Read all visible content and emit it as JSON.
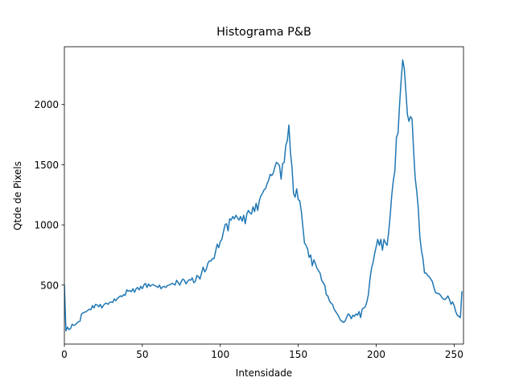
{
  "chart_data": {
    "type": "line",
    "title": "Histograma P&B",
    "xlabel": "Intensidade",
    "ylabel": "Qtde de Pixels",
    "x": [
      0,
      1,
      2,
      3,
      4,
      5,
      6,
      7,
      8,
      9,
      10,
      11,
      12,
      13,
      14,
      15,
      16,
      17,
      18,
      19,
      20,
      21,
      22,
      23,
      24,
      25,
      26,
      27,
      28,
      29,
      30,
      31,
      32,
      33,
      34,
      35,
      36,
      37,
      38,
      39,
      40,
      41,
      42,
      43,
      44,
      45,
      46,
      47,
      48,
      49,
      50,
      51,
      52,
      53,
      54,
      55,
      56,
      57,
      58,
      59,
      60,
      61,
      62,
      63,
      64,
      65,
      66,
      67,
      68,
      69,
      70,
      71,
      72,
      73,
      74,
      75,
      76,
      77,
      78,
      79,
      80,
      81,
      82,
      83,
      84,
      85,
      86,
      87,
      88,
      89,
      90,
      91,
      92,
      93,
      94,
      95,
      96,
      97,
      98,
      99,
      100,
      101,
      102,
      103,
      104,
      105,
      106,
      107,
      108,
      109,
      110,
      111,
      112,
      113,
      114,
      115,
      116,
      117,
      118,
      119,
      120,
      121,
      122,
      123,
      124,
      125,
      126,
      127,
      128,
      129,
      130,
      131,
      132,
      133,
      134,
      135,
      136,
      137,
      138,
      139,
      140,
      141,
      142,
      143,
      144,
      145,
      146,
      147,
      148,
      149,
      150,
      151,
      152,
      153,
      154,
      155,
      156,
      157,
      158,
      159,
      160,
      161,
      162,
      163,
      164,
      165,
      166,
      167,
      168,
      169,
      170,
      171,
      172,
      173,
      174,
      175,
      176,
      177,
      178,
      179,
      180,
      181,
      182,
      183,
      184,
      185,
      186,
      187,
      188,
      189,
      190,
      191,
      192,
      193,
      194,
      195,
      196,
      197,
      198,
      199,
      200,
      201,
      202,
      203,
      204,
      205,
      206,
      207,
      208,
      209,
      210,
      211,
      212,
      213,
      214,
      215,
      216,
      217,
      218,
      219,
      220,
      221,
      222,
      223,
      224,
      225,
      226,
      227,
      228,
      229,
      230,
      231,
      232,
      233,
      234,
      235,
      236,
      237,
      238,
      239,
      240,
      241,
      242,
      243,
      244,
      245,
      246,
      247,
      248,
      249,
      250,
      251,
      252,
      253,
      254,
      255
    ],
    "values": [
      500,
      120,
      150,
      130,
      140,
      175,
      165,
      170,
      185,
      195,
      200,
      260,
      270,
      275,
      280,
      290,
      300,
      295,
      330,
      310,
      340,
      335,
      320,
      340,
      310,
      330,
      345,
      350,
      340,
      355,
      360,
      355,
      385,
      370,
      390,
      400,
      410,
      405,
      420,
      415,
      460,
      450,
      455,
      445,
      470,
      440,
      470,
      480,
      460,
      490,
      470,
      500,
      515,
      480,
      510,
      490,
      500,
      505,
      495,
      490,
      480,
      500,
      470,
      485,
      490,
      480,
      495,
      500,
      505,
      515,
      510,
      500,
      540,
      520,
      500,
      530,
      550,
      540,
      510,
      530,
      545,
      540,
      560,
      520,
      530,
      580,
      570,
      550,
      600,
      650,
      610,
      630,
      680,
      700,
      700,
      720,
      720,
      780,
      840,
      810,
      860,
      880,
      940,
      1000,
      1010,
      950,
      1050,
      1040,
      1070,
      1050,
      1080,
      1060,
      1040,
      1070,
      1030,
      1080,
      1010,
      1090,
      1120,
      1100,
      1090,
      1150,
      1110,
      1180,
      1120,
      1200,
      1240,
      1260,
      1290,
      1300,
      1340,
      1370,
      1420,
      1410,
      1430,
      1480,
      1520,
      1510,
      1490,
      1380,
      1510,
      1520,
      1660,
      1700,
      1830,
      1600,
      1480,
      1260,
      1230,
      1300,
      1210,
      1200,
      1110,
      980,
      850,
      830,
      800,
      730,
      750,
      660,
      710,
      680,
      640,
      620,
      600,
      540,
      520,
      500,
      420,
      410,
      370,
      350,
      340,
      300,
      280,
      260,
      240,
      210,
      200,
      190,
      200,
      230,
      260,
      250,
      220,
      250,
      240,
      260,
      250,
      280,
      230,
      300,
      310,
      320,
      360,
      420,
      550,
      640,
      690,
      760,
      820,
      880,
      830,
      880,
      790,
      880,
      850,
      830,
      940,
      1080,
      1250,
      1370,
      1450,
      1730,
      1760,
      2000,
      2200,
      2370,
      2300,
      2120,
      1920,
      1860,
      1900,
      1880,
      1620,
      1390,
      1280,
      1140,
      900,
      790,
      720,
      600,
      600,
      580,
      570,
      550,
      530,
      480,
      440,
      430,
      430,
      420,
      400,
      385,
      380,
      390,
      410,
      380,
      340,
      360,
      330,
      280,
      250,
      240,
      230,
      450
    ],
    "color": "#1f77b4",
    "xlim": [
      0,
      256
    ],
    "ylim": [
      10,
      2480
    ],
    "xticks": [
      0,
      50,
      100,
      150,
      200,
      250
    ],
    "yticks": [
      500,
      1000,
      1500,
      2000
    ],
    "grid": false
  }
}
